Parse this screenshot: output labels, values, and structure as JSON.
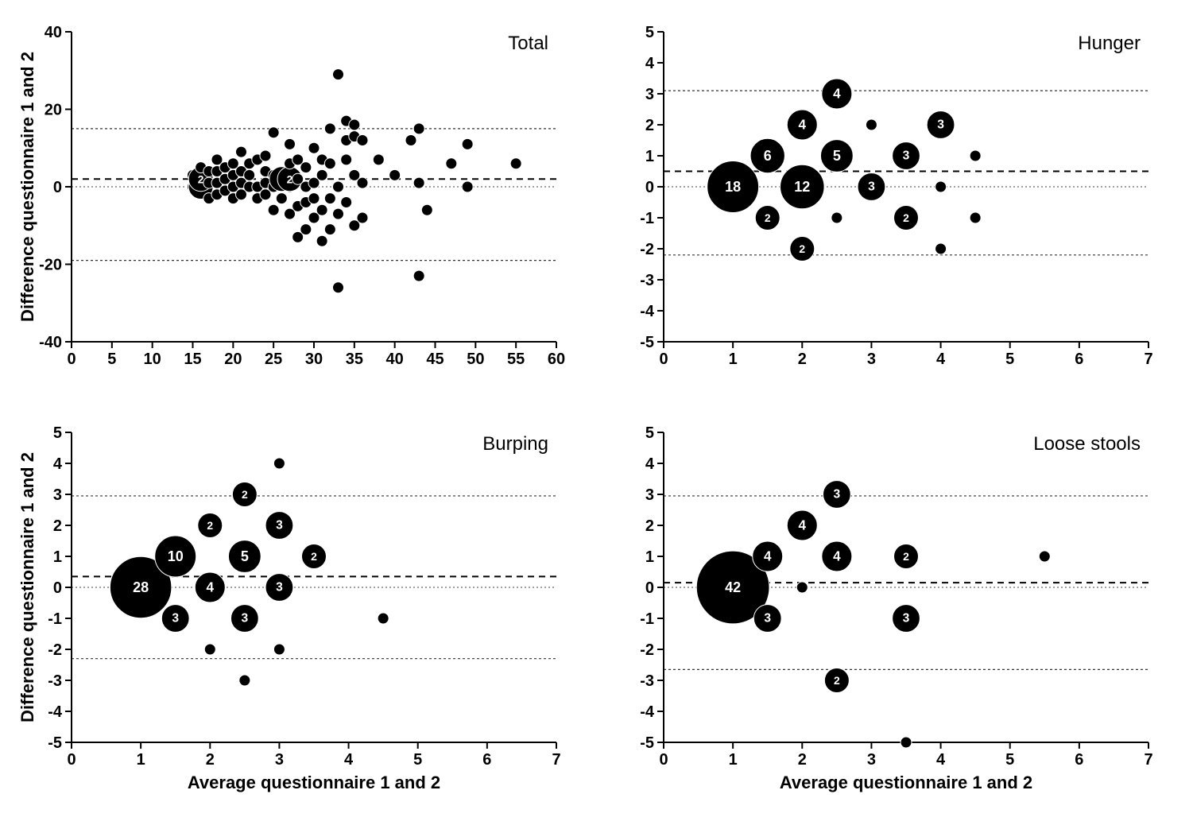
{
  "global": {
    "xlabel": "Average questionnaire 1 and 2",
    "ylabel": "Difference questionnaire 1 and 2",
    "bg": "#ffffff",
    "point_fill": "#000000",
    "point_stroke": "#ffffff",
    "axis_color": "#000000",
    "mean_dash": "8 6",
    "limit_dash": "3 3",
    "zero_dash": "2 3",
    "base_radius": 7,
    "radius_scale": 2.0,
    "label_fontsize_base": 11
  },
  "panels": [
    {
      "key": "total",
      "title": "Total",
      "xlim": [
        0,
        60
      ],
      "xtick_step": 5,
      "ylim": [
        -40,
        40
      ],
      "ytick_step": 20,
      "mean_line": 2,
      "zero_line": 0,
      "upper_limit": 15,
      "lower_limit": -19,
      "show_xlabel": false,
      "show_ylabel": true,
      "points": [
        {
          "x": 15,
          "y": 0
        },
        {
          "x": 15,
          "y": 3
        },
        {
          "x": 16,
          "y": 0,
          "n": 2
        },
        {
          "x": 16,
          "y": 2,
          "n": 2
        },
        {
          "x": 16,
          "y": 5
        },
        {
          "x": 17,
          "y": -3
        },
        {
          "x": 17,
          "y": 1
        },
        {
          "x": 17,
          "y": 4
        },
        {
          "x": 18,
          "y": -2
        },
        {
          "x": 18,
          "y": 1
        },
        {
          "x": 18,
          "y": 4
        },
        {
          "x": 18,
          "y": 7
        },
        {
          "x": 19,
          "y": -1
        },
        {
          "x": 19,
          "y": 2
        },
        {
          "x": 19,
          "y": 5
        },
        {
          "x": 20,
          "y": -3
        },
        {
          "x": 20,
          "y": 0
        },
        {
          "x": 20,
          "y": 3
        },
        {
          "x": 20,
          "y": 6
        },
        {
          "x": 21,
          "y": -2
        },
        {
          "x": 21,
          "y": 1
        },
        {
          "x": 21,
          "y": 4
        },
        {
          "x": 21,
          "y": 9
        },
        {
          "x": 22,
          "y": 0
        },
        {
          "x": 22,
          "y": 3
        },
        {
          "x": 22,
          "y": 6
        },
        {
          "x": 23,
          "y": -3
        },
        {
          "x": 23,
          "y": 0
        },
        {
          "x": 23,
          "y": 7
        },
        {
          "x": 24,
          "y": -2
        },
        {
          "x": 24,
          "y": 1
        },
        {
          "x": 24,
          "y": 4
        },
        {
          "x": 24,
          "y": 8
        },
        {
          "x": 25,
          "y": -6
        },
        {
          "x": 25,
          "y": 0
        },
        {
          "x": 25,
          "y": 3
        },
        {
          "x": 25,
          "y": 14
        },
        {
          "x": 26,
          "y": -3
        },
        {
          "x": 26,
          "y": 1
        },
        {
          "x": 26,
          "y": 2,
          "n": 2
        },
        {
          "x": 27,
          "y": -7
        },
        {
          "x": 27,
          "y": 0
        },
        {
          "x": 27,
          "y": 2,
          "n": 2
        },
        {
          "x": 27,
          "y": 6
        },
        {
          "x": 27,
          "y": 11
        },
        {
          "x": 28,
          "y": -13
        },
        {
          "x": 28,
          "y": -5
        },
        {
          "x": 28,
          "y": 2
        },
        {
          "x": 28,
          "y": 7
        },
        {
          "x": 29,
          "y": -11
        },
        {
          "x": 29,
          "y": -4
        },
        {
          "x": 29,
          "y": 0
        },
        {
          "x": 29,
          "y": 5
        },
        {
          "x": 30,
          "y": -8
        },
        {
          "x": 30,
          "y": -3
        },
        {
          "x": 30,
          "y": 1
        },
        {
          "x": 30,
          "y": 10
        },
        {
          "x": 31,
          "y": -14
        },
        {
          "x": 31,
          "y": -6
        },
        {
          "x": 31,
          "y": 3
        },
        {
          "x": 31,
          "y": 7
        },
        {
          "x": 32,
          "y": -11
        },
        {
          "x": 32,
          "y": -3
        },
        {
          "x": 32,
          "y": 6
        },
        {
          "x": 32,
          "y": 15
        },
        {
          "x": 33,
          "y": -26
        },
        {
          "x": 33,
          "y": -7
        },
        {
          "x": 33,
          "y": 0
        },
        {
          "x": 33,
          "y": 29
        },
        {
          "x": 34,
          "y": -4
        },
        {
          "x": 34,
          "y": 7
        },
        {
          "x": 34,
          "y": 12
        },
        {
          "x": 34,
          "y": 17
        },
        {
          "x": 35,
          "y": -10
        },
        {
          "x": 35,
          "y": 3
        },
        {
          "x": 35,
          "y": 13
        },
        {
          "x": 35,
          "y": 16
        },
        {
          "x": 36,
          "y": -8
        },
        {
          "x": 36,
          "y": 1
        },
        {
          "x": 36,
          "y": 12
        },
        {
          "x": 38,
          "y": 7
        },
        {
          "x": 40,
          "y": 3
        },
        {
          "x": 42,
          "y": 12
        },
        {
          "x": 43,
          "y": -23
        },
        {
          "x": 43,
          "y": 1
        },
        {
          "x": 43,
          "y": 15
        },
        {
          "x": 44,
          "y": -6
        },
        {
          "x": 47,
          "y": 6
        },
        {
          "x": 49,
          "y": 11
        },
        {
          "x": 49,
          "y": 0
        },
        {
          "x": 55,
          "y": 6
        }
      ]
    },
    {
      "key": "hunger",
      "title": "Hunger",
      "xlim": [
        0,
        7
      ],
      "xtick_step": 1,
      "ylim": [
        -5,
        5
      ],
      "ytick_step": 1,
      "mean_line": 0.5,
      "zero_line": 0,
      "upper_limit": 3.1,
      "lower_limit": -2.2,
      "show_xlabel": false,
      "show_ylabel": false,
      "points": [
        {
          "x": 1,
          "y": 0,
          "n": 18
        },
        {
          "x": 1.5,
          "y": 1,
          "n": 6
        },
        {
          "x": 1.5,
          "y": -1,
          "n": 2
        },
        {
          "x": 2,
          "y": 0,
          "n": 12
        },
        {
          "x": 2,
          "y": 2,
          "n": 4
        },
        {
          "x": 2,
          "y": -2,
          "n": 2
        },
        {
          "x": 2.5,
          "y": 1,
          "n": 5
        },
        {
          "x": 2.5,
          "y": 3,
          "n": 4
        },
        {
          "x": 2.5,
          "y": -1
        },
        {
          "x": 3,
          "y": 0,
          "n": 3
        },
        {
          "x": 3,
          "y": 2
        },
        {
          "x": 3.5,
          "y": 1,
          "n": 3
        },
        {
          "x": 3.5,
          "y": -1,
          "n": 2
        },
        {
          "x": 4,
          "y": 0
        },
        {
          "x": 4,
          "y": 2,
          "n": 3
        },
        {
          "x": 4,
          "y": -2
        },
        {
          "x": 4.5,
          "y": 1
        },
        {
          "x": 4.5,
          "y": -1
        }
      ]
    },
    {
      "key": "burping",
      "title": "Burping",
      "xlim": [
        0,
        7
      ],
      "xtick_step": 1,
      "ylim": [
        -5,
        5
      ],
      "ytick_step": 1,
      "mean_line": 0.35,
      "zero_line": 0,
      "upper_limit": 2.95,
      "lower_limit": -2.3,
      "show_xlabel": true,
      "show_ylabel": true,
      "points": [
        {
          "x": 1,
          "y": 0,
          "n": 28
        },
        {
          "x": 1.5,
          "y": 1,
          "n": 10
        },
        {
          "x": 1.5,
          "y": -1,
          "n": 3
        },
        {
          "x": 2,
          "y": 0,
          "n": 4
        },
        {
          "x": 2,
          "y": 2,
          "n": 2
        },
        {
          "x": 2,
          "y": -2
        },
        {
          "x": 2.5,
          "y": 1,
          "n": 5
        },
        {
          "x": 2.5,
          "y": 3,
          "n": 2
        },
        {
          "x": 2.5,
          "y": -1,
          "n": 3
        },
        {
          "x": 2.5,
          "y": -3
        },
        {
          "x": 3,
          "y": 0,
          "n": 3
        },
        {
          "x": 3,
          "y": 2,
          "n": 3
        },
        {
          "x": 3,
          "y": 4
        },
        {
          "x": 3,
          "y": -2
        },
        {
          "x": 3.5,
          "y": 1,
          "n": 2
        },
        {
          "x": 4.5,
          "y": -1
        }
      ]
    },
    {
      "key": "loose",
      "title": "Loose stools",
      "xlim": [
        0,
        7
      ],
      "xtick_step": 1,
      "ylim": [
        -5,
        5
      ],
      "ytick_step": 1,
      "mean_line": 0.15,
      "zero_line": 0,
      "upper_limit": 2.95,
      "lower_limit": -2.65,
      "show_xlabel": true,
      "show_ylabel": false,
      "points": [
        {
          "x": 1,
          "y": 0,
          "n": 42
        },
        {
          "x": 1.5,
          "y": 1,
          "n": 4
        },
        {
          "x": 1.5,
          "y": -1,
          "n": 3
        },
        {
          "x": 2,
          "y": 0
        },
        {
          "x": 2,
          "y": 2,
          "n": 4
        },
        {
          "x": 2.5,
          "y": 1,
          "n": 4
        },
        {
          "x": 2.5,
          "y": 3,
          "n": 3
        },
        {
          "x": 2.5,
          "y": -3,
          "n": 2
        },
        {
          "x": 3.5,
          "y": 1,
          "n": 2
        },
        {
          "x": 3.5,
          "y": -1,
          "n": 3
        },
        {
          "x": 3.5,
          "y": -5
        },
        {
          "x": 5.5,
          "y": 1
        }
      ]
    }
  ]
}
